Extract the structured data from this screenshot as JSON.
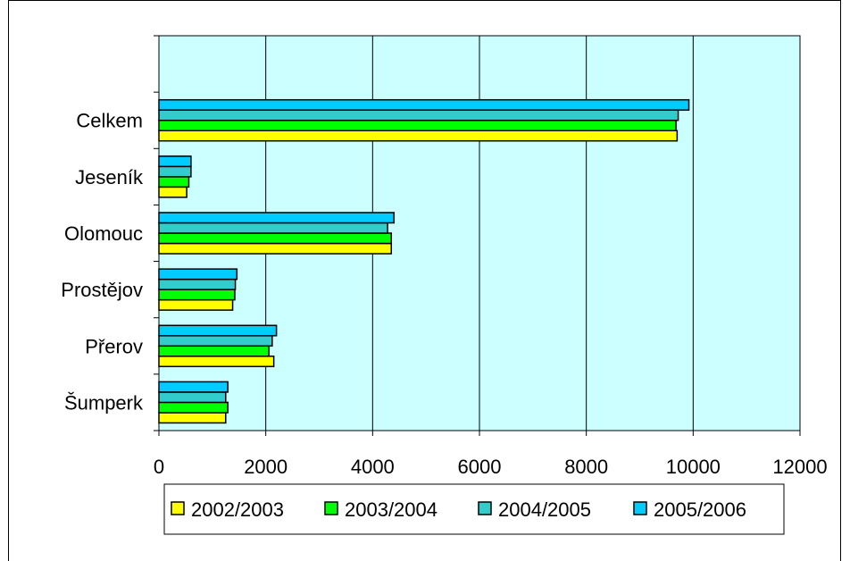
{
  "chart_data": {
    "type": "bar",
    "orientation": "horizontal",
    "categories": [
      "Celkem",
      "Jeseník",
      "Olomouc",
      "Prostějov",
      "Přerov",
      "Šumperk"
    ],
    "series": [
      {
        "name": "2002/2003",
        "color": "#ffff00",
        "values": [
          9700,
          520,
          4350,
          1380,
          2150,
          1250
        ]
      },
      {
        "name": "2003/2004",
        "color": "#00ff00",
        "values": [
          9680,
          560,
          4350,
          1420,
          2060,
          1290
        ]
      },
      {
        "name": "2004/2005",
        "color": "#33cccc",
        "values": [
          9720,
          600,
          4280,
          1430,
          2120,
          1250
        ]
      },
      {
        "name": "2005/2006",
        "color": "#00ccff",
        "values": [
          9920,
          600,
          4400,
          1460,
          2200,
          1290
        ]
      }
    ],
    "xlim": [
      0,
      12000
    ],
    "xticks": [
      "0",
      "2000",
      "4000",
      "6000",
      "8000",
      "10000",
      "12000"
    ],
    "plot_background": "#ccffff",
    "grid": true,
    "legend_position": "bottom",
    "title": "",
    "xlabel": "",
    "ylabel": ""
  }
}
